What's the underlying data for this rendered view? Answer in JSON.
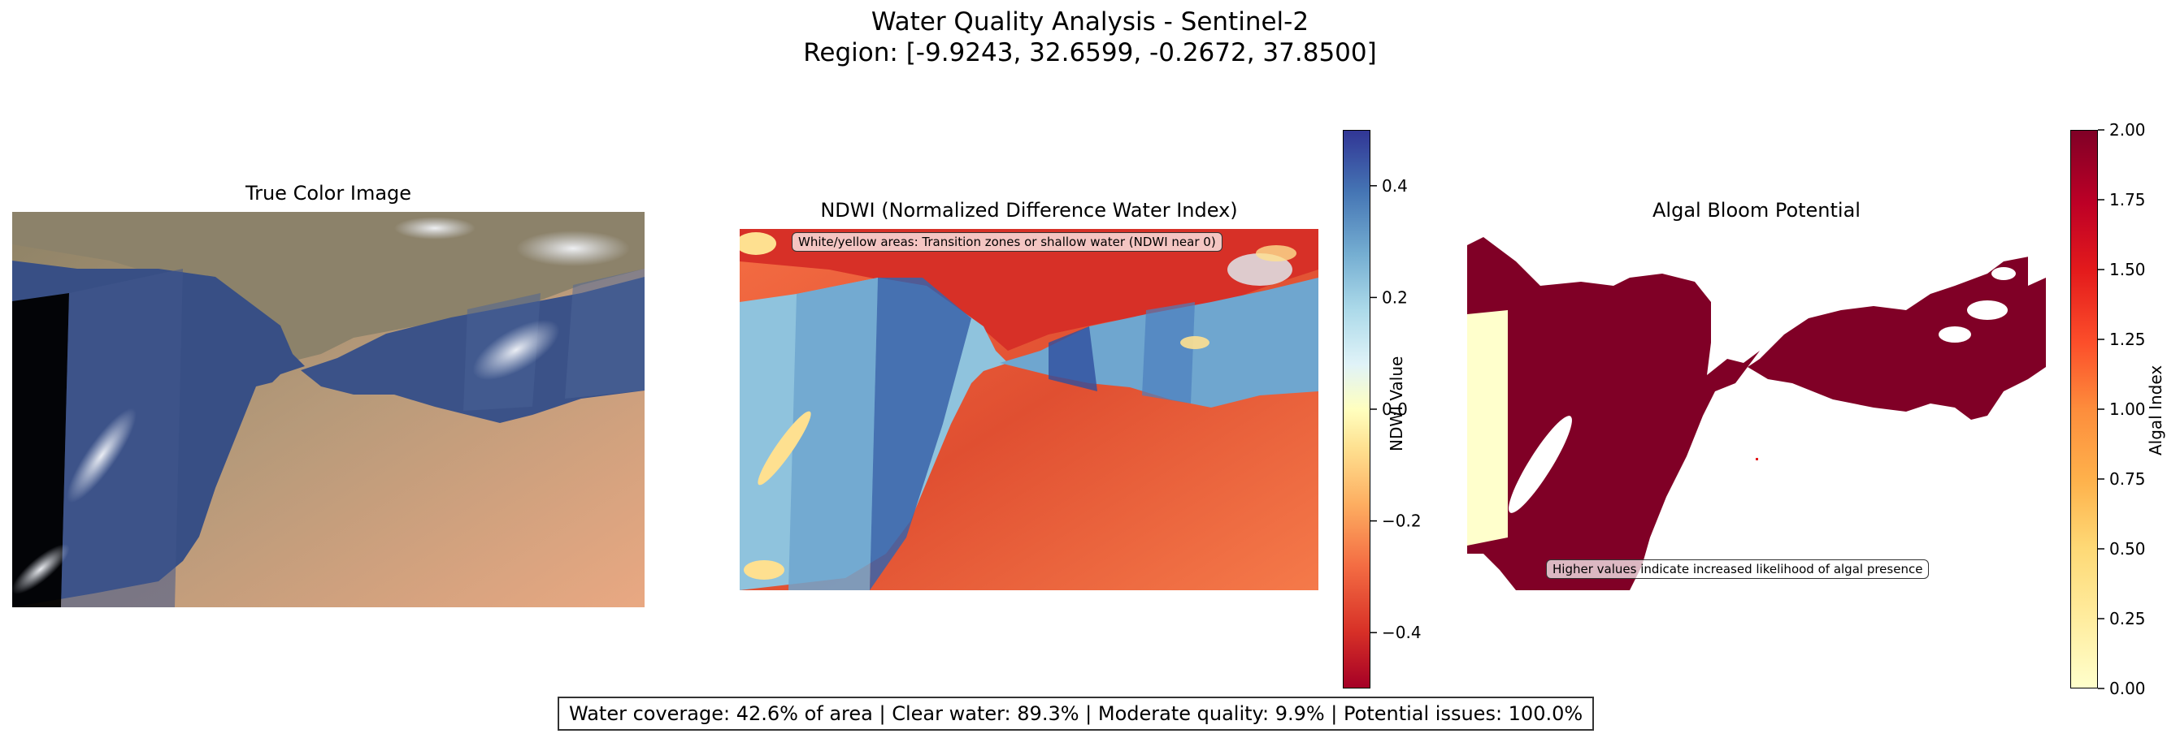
{
  "figure": {
    "title_line1": "Water Quality Analysis - Sentinel-2",
    "title_line2": "Region: [-9.9243, 32.6599, -0.2672, 37.8500]"
  },
  "panels": {
    "true_color": {
      "title": "True Color Image"
    },
    "ndwi": {
      "title": "NDWI (Normalized Difference Water Index)",
      "annotation": "White/yellow areas: Transition zones or shallow water (NDWI near 0)",
      "colorbar_label": "NDWI Value",
      "colormap": [
        "#a50026",
        "#f46d43",
        "#fee090",
        "#ffffbf",
        "#e0f3f8",
        "#74add1",
        "#313695"
      ]
    },
    "algal": {
      "title": "Algal Bloom Potential",
      "annotation": "Higher values indicate increased likelihood of algal presence",
      "colorbar_label": "Algal Index",
      "colormap": [
        "#ffffcc",
        "#fed976",
        "#fd8d3c",
        "#e31a1c",
        "#800026"
      ]
    }
  },
  "summary": "Water coverage: 42.6% of area | Clear water: 89.3% | Moderate quality: 9.9% | Potential issues: 100.0%",
  "chart_data": [
    {
      "type": "heatmap",
      "title": "True Color Image",
      "description_values": {
        "channels": "RGB"
      }
    },
    {
      "type": "heatmap",
      "title": "NDWI (Normalized Difference Water Index)",
      "colorbar": {
        "label": "NDWI Value",
        "range": [
          -0.5,
          0.5
        ],
        "ticks": [
          -0.4,
          -0.2,
          0.0,
          0.2,
          0.4
        ],
        "tick_labels": [
          "−0.4",
          "−0.2",
          "0.0",
          "0.2",
          "0.4"
        ]
      }
    },
    {
      "type": "heatmap",
      "title": "Algal Bloom Potential",
      "colorbar": {
        "label": "Algal Index",
        "range": [
          0.0,
          2.0
        ],
        "ticks": [
          0.0,
          0.25,
          0.5,
          0.75,
          1.0,
          1.25,
          1.5,
          1.75,
          2.0
        ],
        "tick_labels": [
          "0.00",
          "0.25",
          "0.50",
          "0.75",
          "1.00",
          "1.25",
          "1.50",
          "1.75",
          "2.00"
        ]
      }
    }
  ]
}
